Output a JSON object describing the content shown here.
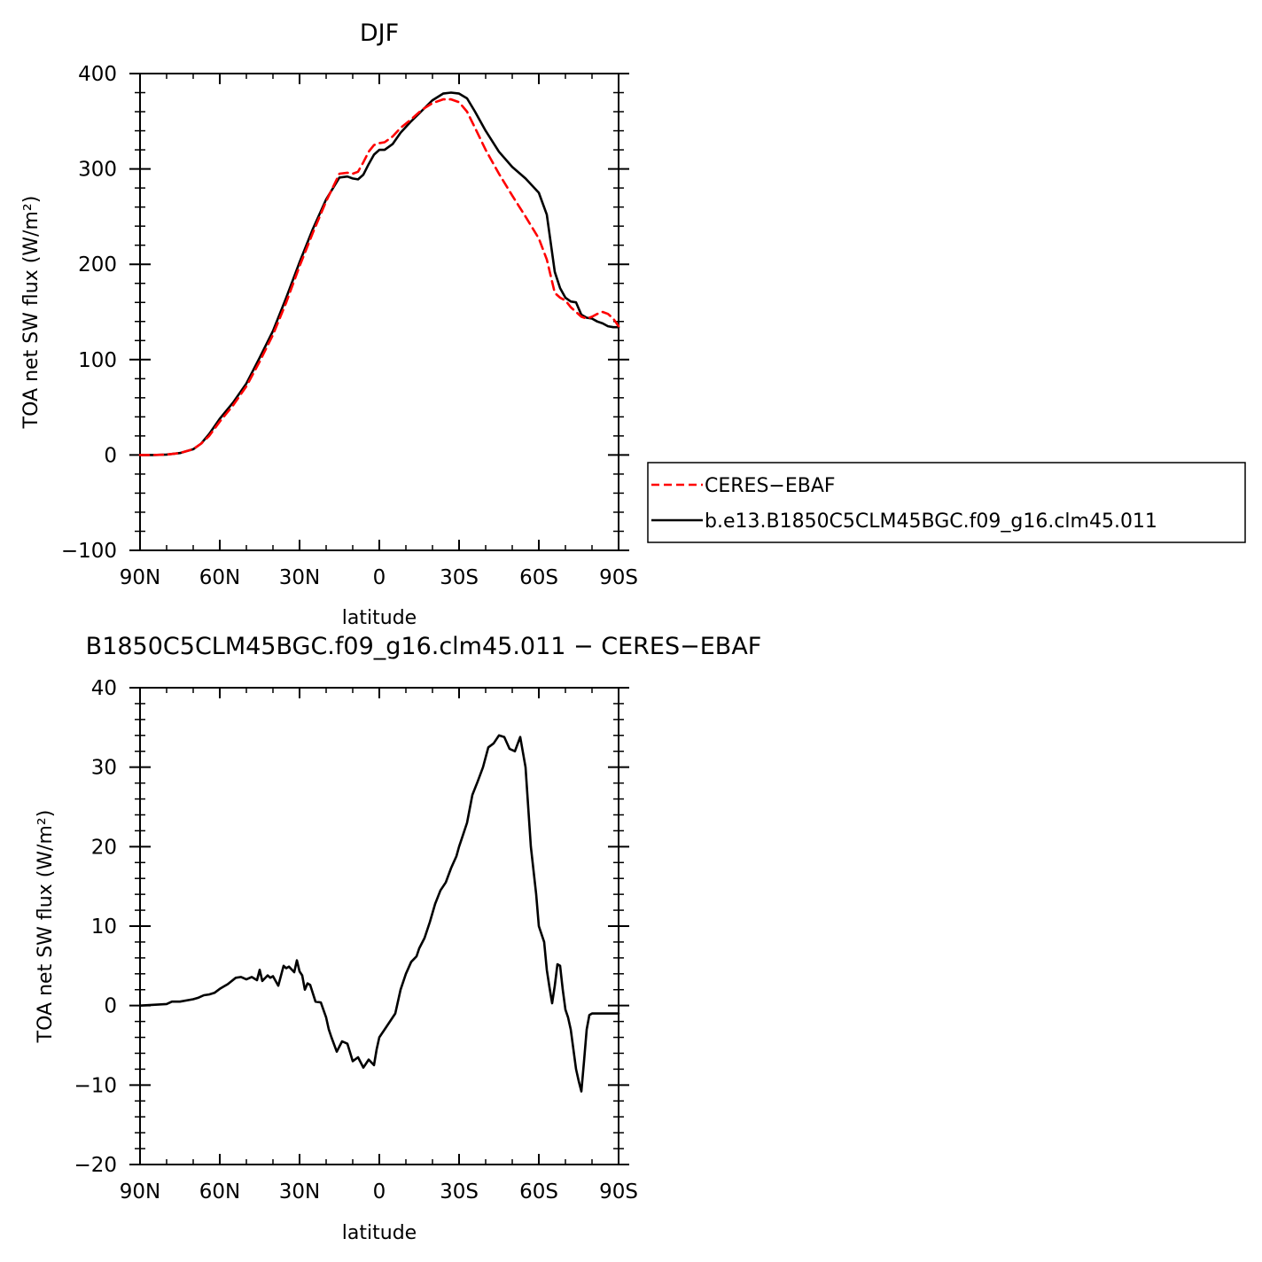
{
  "chart_data": [
    {
      "type": "line",
      "title": "DJF",
      "xlabel": "latitude",
      "ylabel": "TOA net SW flux (W/m²)",
      "xlim": [
        90,
        -90
      ],
      "ylim": [
        -100,
        400
      ],
      "x_tick_values": [
        90,
        60,
        30,
        0,
        -30,
        -60,
        -90
      ],
      "x_tick_labels": [
        "90N",
        "60N",
        "30N",
        "0",
        "30S",
        "60S",
        "90S"
      ],
      "y_tick_values": [
        -100,
        0,
        100,
        200,
        300,
        400
      ],
      "y_tick_labels": [
        "−100",
        "0",
        "100",
        "200",
        "300",
        "400"
      ],
      "legend_position": "right",
      "series": [
        {
          "name": "CERES−EBAF",
          "color": "#ff0000",
          "dash": "dashed",
          "x": [
            90,
            85,
            80,
            75,
            70,
            67,
            64,
            60,
            55,
            50,
            45,
            40,
            35,
            30,
            25,
            20,
            15,
            12,
            10,
            8,
            6,
            4,
            2,
            0,
            -2,
            -5,
            -8,
            -12,
            -16,
            -20,
            -24,
            -27,
            -30,
            -33,
            -36,
            -40,
            -45,
            -50,
            -55,
            -60,
            -63,
            -66,
            -68,
            -70,
            -72,
            -74,
            -76,
            -78,
            -80,
            -82,
            -84,
            -86,
            -88,
            -90
          ],
          "y": [
            0,
            0,
            0.5,
            2,
            6,
            12,
            20,
            35,
            52,
            72,
            98,
            126,
            160,
            198,
            233,
            266,
            295,
            296,
            295,
            297,
            307,
            318,
            325,
            327,
            328,
            334,
            343,
            352,
            362,
            369,
            373,
            373,
            370,
            360,
            343,
            320,
            295,
            272,
            250,
            227,
            205,
            170,
            165,
            162,
            155,
            150,
            145,
            143,
            145,
            148,
            150,
            148,
            143,
            135
          ]
        },
        {
          "name": "b.e13.B1850C5CLM45BGC.f09_g16.clm45.011",
          "color": "#000000",
          "dash": "solid",
          "x": [
            90,
            85,
            80,
            75,
            70,
            67,
            64,
            60,
            55,
            50,
            45,
            40,
            35,
            30,
            25,
            20,
            15,
            12,
            10,
            8,
            6,
            4,
            2,
            0,
            -2,
            -5,
            -8,
            -12,
            -16,
            -20,
            -24,
            -27,
            -30,
            -33,
            -36,
            -40,
            -45,
            -50,
            -55,
            -60,
            -63,
            -66,
            -68,
            -70,
            -72,
            -74,
            -76,
            -78,
            -80,
            -82,
            -84,
            -86,
            -88,
            -90
          ],
          "y": [
            0,
            0,
            0.5,
            2,
            6,
            12,
            22,
            38,
            55,
            75,
            102,
            130,
            165,
            202,
            237,
            268,
            291,
            292,
            290,
            289,
            294,
            305,
            315,
            320,
            320,
            326,
            338,
            350,
            361,
            372,
            379,
            380,
            379,
            374,
            360,
            340,
            318,
            302,
            290,
            275,
            252,
            192,
            175,
            165,
            161,
            160,
            147,
            144,
            143,
            140,
            138,
            135,
            134,
            134
          ]
        }
      ]
    },
    {
      "type": "line",
      "title": "B1850C5CLM45BGC.f09_g16.clm45.011 − CERES−EBAF",
      "xlabel": "latitude",
      "ylabel": "TOA net SW flux (W/m²)",
      "xlim": [
        90,
        -90
      ],
      "ylim": [
        -20,
        40
      ],
      "x_tick_values": [
        90,
        60,
        30,
        0,
        -30,
        -60,
        -90
      ],
      "x_tick_labels": [
        "90N",
        "60N",
        "30N",
        "0",
        "30S",
        "60S",
        "90S"
      ],
      "y_tick_values": [
        -20,
        -10,
        0,
        10,
        20,
        30,
        40
      ],
      "y_tick_labels": [
        "−20",
        "−10",
        "0",
        "10",
        "20",
        "30",
        "40"
      ],
      "series": [
        {
          "color": "#000000",
          "dash": "solid",
          "x": [
            90,
            85,
            80,
            78,
            75,
            70,
            68,
            66,
            64,
            62,
            60,
            57,
            54,
            52,
            50,
            48,
            46,
            45,
            44,
            42,
            41,
            40,
            38,
            36,
            35,
            34,
            32,
            31,
            30,
            29,
            28,
            27,
            26,
            24,
            22,
            20,
            19,
            18,
            16,
            14,
            12,
            10,
            8,
            6,
            4,
            2,
            1,
            0,
            -2,
            -3,
            -4,
            -6,
            -7,
            -8,
            -10,
            -12,
            -14,
            -15,
            -17,
            -19,
            -21,
            -23,
            -25,
            -27,
            -29,
            -30,
            -31,
            -33,
            -35,
            -37,
            -39,
            -41,
            -43,
            -45,
            -47,
            -49,
            -51,
            -53,
            -55,
            -57,
            -59,
            -60,
            -62,
            -63,
            -64,
            -65,
            -66,
            -67,
            -68,
            -69,
            -70,
            -71,
            -72,
            -73,
            -74,
            -75,
            -76,
            -77,
            -78,
            -79,
            -80,
            -81,
            -82,
            -83,
            -84,
            -85,
            -86,
            -87,
            -88,
            -89,
            -90
          ],
          "y": [
            0,
            0.1,
            0.2,
            0.5,
            0.5,
            0.8,
            1.0,
            1.3,
            1.4,
            1.6,
            2.1,
            2.7,
            3.5,
            3.6,
            3.3,
            3.6,
            3.2,
            4.5,
            3.1,
            3.8,
            3.5,
            3.7,
            2.5,
            5.0,
            4.7,
            4.9,
            4.2,
            5.7,
            4.3,
            3.8,
            2.0,
            2.8,
            2.6,
            0.5,
            0.4,
            -1.5,
            -3.0,
            -4.0,
            -5.8,
            -4.5,
            -4.8,
            -7.0,
            -6.5,
            -7.8,
            -6.8,
            -7.5,
            -5.5,
            -4.0,
            -3.0,
            -2.5,
            -2.0,
            -1.0,
            0.5,
            2.0,
            4.0,
            5.5,
            6.2,
            7.2,
            8.5,
            10.5,
            12.8,
            14.5,
            15.5,
            17.3,
            18.8,
            20.0,
            21.0,
            23.0,
            26.5,
            28.2,
            30.0,
            32.5,
            33.0,
            34.0,
            33.8,
            32.3,
            32.0,
            33.8,
            30.0,
            20.0,
            14.0,
            10.0,
            8.0,
            4.5,
            2.3,
            0.3,
            2.5,
            5.2,
            5.0,
            2.0,
            -0.5,
            -1.5,
            -3.0,
            -5.5,
            -8.0,
            -9.5,
            -10.8,
            -7.0,
            -3.0,
            -1.2,
            -1.0,
            -1.0,
            -1.0,
            -1.0,
            -1.0,
            -1.0,
            -1.0,
            -1.0,
            -1.0,
            -1.0,
            -1.0
          ]
        }
      ]
    }
  ]
}
